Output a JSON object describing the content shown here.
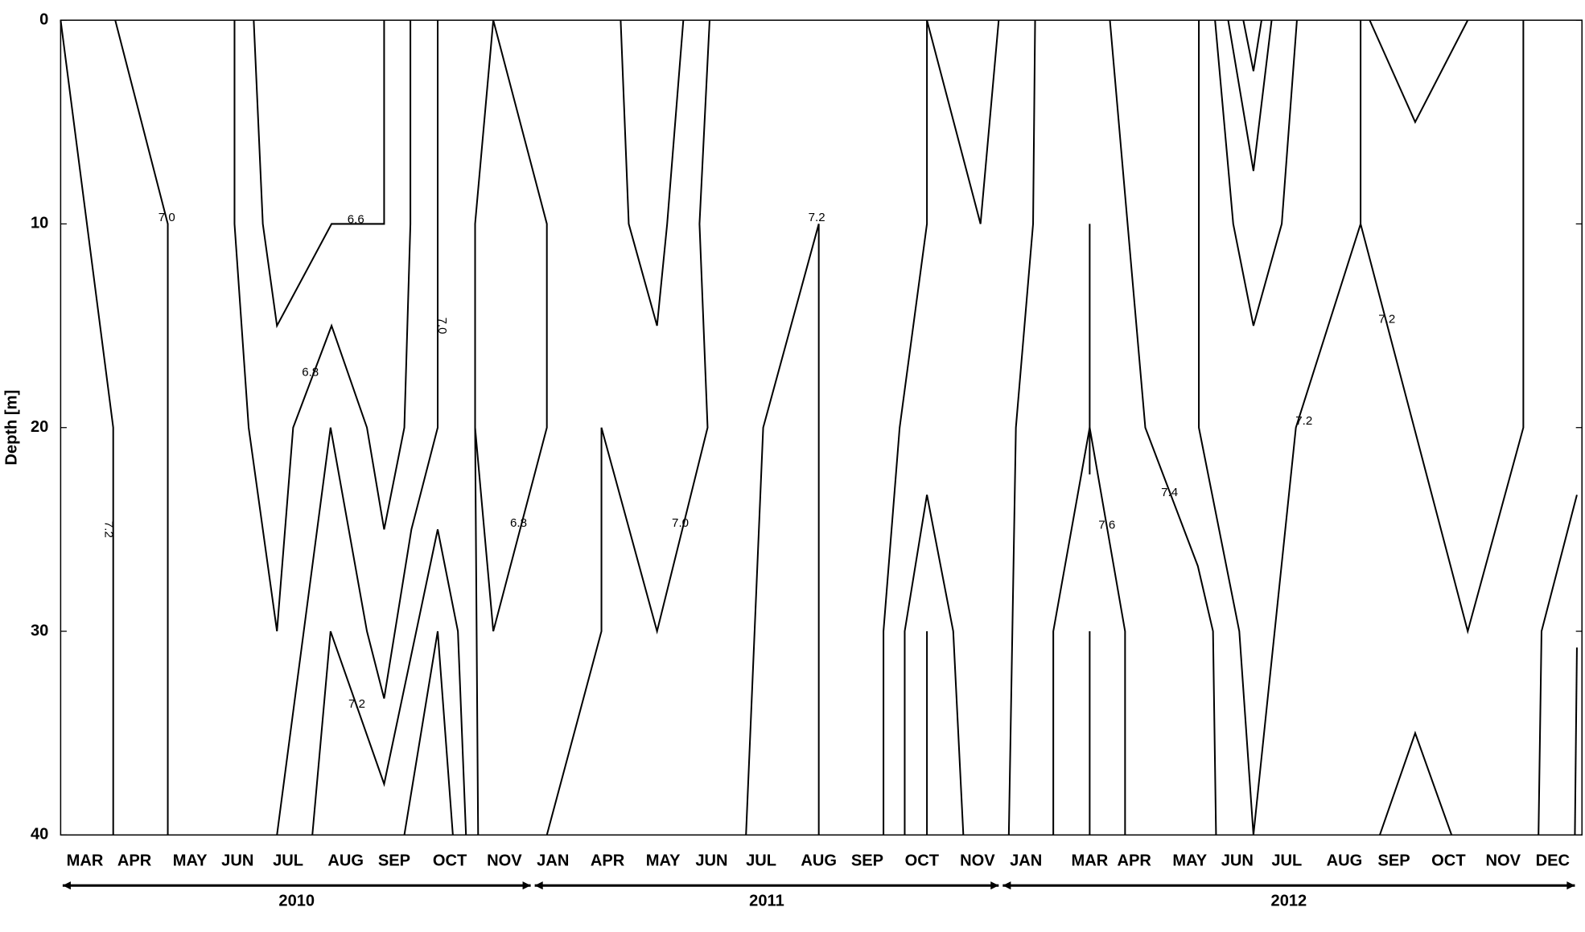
{
  "chart_data": {
    "type": "contour",
    "ylabel": "Depth [m]",
    "xlim": [
      0,
      1505
    ],
    "ylim": [
      0,
      40
    ],
    "y_inverted": true,
    "yticks": [
      0,
      10,
      20,
      30,
      40
    ],
    "xticks": [
      {
        "value": 24,
        "label": "MAR"
      },
      {
        "value": 73,
        "label": "APR"
      },
      {
        "value": 128,
        "label": "MAY"
      },
      {
        "value": 175,
        "label": "JUN"
      },
      {
        "value": 225,
        "label": "JUL"
      },
      {
        "value": 282,
        "label": "AUG"
      },
      {
        "value": 330,
        "label": "SEP"
      },
      {
        "value": 385,
        "label": "OCT"
      },
      {
        "value": 439,
        "label": "NOV"
      },
      {
        "value": 487,
        "label": "JAN"
      },
      {
        "value": 541,
        "label": "APR"
      },
      {
        "value": 596,
        "label": "MAY"
      },
      {
        "value": 644,
        "label": "JUN"
      },
      {
        "value": 693,
        "label": "JUL"
      },
      {
        "value": 750,
        "label": "AUG"
      },
      {
        "value": 798,
        "label": "SEP"
      },
      {
        "value": 852,
        "label": "OCT"
      },
      {
        "value": 907,
        "label": "NOV"
      },
      {
        "value": 955,
        "label": "JAN"
      },
      {
        "value": 1018,
        "label": "MAR"
      },
      {
        "value": 1062,
        "label": "APR"
      },
      {
        "value": 1117,
        "label": "MAY"
      },
      {
        "value": 1164,
        "label": "JUN"
      },
      {
        "value": 1213,
        "label": "JUL"
      },
      {
        "value": 1270,
        "label": "AUG"
      },
      {
        "value": 1319,
        "label": "SEP"
      },
      {
        "value": 1373,
        "label": "OCT"
      },
      {
        "value": 1427,
        "label": "NOV"
      },
      {
        "value": 1476,
        "label": "DEC"
      }
    ],
    "periods": [
      {
        "label": "2010",
        "start": 0,
        "end": 467
      },
      {
        "label": "2011",
        "start": 467,
        "end": 930
      },
      {
        "label": "2012",
        "start": 930,
        "end": 1500
      }
    ],
    "color": "#000000",
    "contours": [
      {
        "x": [
          0,
          52,
          52
        ],
        "y": [
          0,
          20,
          40
        ]
      },
      {
        "x": [
          54,
          106,
          106
        ],
        "y": [
          0,
          10,
          40
        ]
      },
      {
        "x": [
          172,
          172,
          186,
          214,
          230,
          268,
          303,
          320,
          340,
          346,
          346
        ],
        "y": [
          0,
          10,
          20,
          30,
          20,
          15,
          20,
          25,
          20,
          10,
          0
        ]
      },
      {
        "x": [
          191,
          200,
          214,
          268,
          320,
          320
        ],
        "y": [
          0,
          10,
          15,
          10,
          10,
          0
        ]
      },
      {
        "x": [
          214,
          267,
          303,
          320,
          347,
          373,
          373
        ],
        "y": [
          40,
          20,
          30,
          33.3,
          25,
          20,
          0
        ]
      },
      {
        "x": [
          249,
          267,
          320,
          373,
          393,
          401
        ],
        "y": [
          40,
          30,
          37.5,
          25,
          30,
          40
        ]
      },
      {
        "x": [
          340,
          373,
          388
        ],
        "y": [
          40,
          30,
          40
        ]
      },
      {
        "x": [
          413,
          410,
          410,
          428,
          481,
          481,
          428,
          410
        ],
        "y": [
          40,
          20,
          10,
          0,
          10,
          20,
          30,
          20
        ]
      },
      {
        "x": [
          481,
          535,
          535,
          590,
          640,
          632,
          642
        ],
        "y": [
          40,
          30,
          20,
          30,
          20,
          10,
          0
        ]
      },
      {
        "x": [
          554,
          562,
          590,
          600,
          616
        ],
        "y": [
          0,
          10,
          15,
          10,
          0
        ]
      },
      {
        "x": [
          678,
          695,
          750,
          750
        ],
        "y": [
          40,
          20,
          10,
          40
        ]
      },
      {
        "x": [
          814,
          814,
          830,
          857,
          857
        ],
        "y": [
          40,
          30,
          20,
          10,
          0
        ]
      },
      {
        "x": [
          835,
          835,
          857,
          883,
          893
        ],
        "y": [
          40,
          30,
          23.3,
          30,
          40
        ]
      },
      {
        "x": [
          857,
          857
        ],
        "y": [
          40,
          30
        ]
      },
      {
        "x": [
          857,
          910,
          928
        ],
        "y": [
          0,
          10,
          0
        ]
      },
      {
        "x": [
          938,
          945,
          962,
          964
        ],
        "y": [
          40,
          20,
          10,
          0
        ]
      },
      {
        "x": [
          982,
          982,
          1018,
          1053,
          1053
        ],
        "y": [
          40,
          30,
          20,
          30,
          40
        ]
      },
      {
        "x": [
          1018,
          1018
        ],
        "y": [
          40,
          30
        ]
      },
      {
        "x": [
          1018,
          1018
        ],
        "y": [
          10,
          22.3
        ]
      },
      {
        "x": [
          1038,
          1073,
          1125,
          1140,
          1143
        ],
        "y": [
          0,
          20,
          26.8,
          30,
          40
        ]
      },
      {
        "x": [
          1126,
          1126,
          1166,
          1180,
          1222,
          1286,
          1392,
          1447,
          1447
        ],
        "y": [
          0,
          20,
          30,
          40,
          20,
          10,
          30,
          20,
          0
        ]
      },
      {
        "x": [
          1286,
          1286
        ],
        "y": [
          10,
          0
        ]
      },
      {
        "x": [
          1142,
          1160,
          1180,
          1208,
          1223
        ],
        "y": [
          0,
          10,
          15,
          10,
          0
        ]
      },
      {
        "x": [
          1155,
          1180,
          1198
        ],
        "y": [
          0,
          7.4,
          0
        ]
      },
      {
        "x": [
          1170,
          1180,
          1188
        ],
        "y": [
          0,
          2.5,
          0
        ]
      },
      {
        "x": [
          1295,
          1340,
          1392
        ],
        "y": [
          0,
          5,
          0
        ]
      },
      {
        "x": [
          1305,
          1340,
          1376
        ],
        "y": [
          40,
          35,
          40
        ]
      },
      {
        "x": [
          1462,
          1465,
          1500
        ],
        "y": [
          40,
          30,
          23.3
        ]
      },
      {
        "x": [
          1498,
          1500
        ],
        "y": [
          40,
          30.8
        ]
      }
    ],
    "contour_labels": [
      {
        "text": "7.2",
        "x": 47,
        "y": 25,
        "rotated": true
      },
      {
        "text": "7.0",
        "x": 105,
        "y": 9.7
      },
      {
        "text": "6.6",
        "x": 292,
        "y": 9.8
      },
      {
        "text": "6.8",
        "x": 247,
        "y": 17.3
      },
      {
        "text": "7.0",
        "x": 377,
        "y": 15,
        "rotated": true
      },
      {
        "text": "7.2",
        "x": 293,
        "y": 33.6
      },
      {
        "text": "6.8",
        "x": 453,
        "y": 24.7
      },
      {
        "text": "7.0",
        "x": 613,
        "y": 24.7
      },
      {
        "text": "7.2",
        "x": 748,
        "y": 9.7
      },
      {
        "text": "7.6",
        "x": 1035,
        "y": 24.8
      },
      {
        "text": "7.4",
        "x": 1097,
        "y": 23.2
      },
      {
        "text": "7.2",
        "x": 1230,
        "y": 19.7
      },
      {
        "text": "7.2",
        "x": 1312,
        "y": 14.7
      }
    ]
  }
}
